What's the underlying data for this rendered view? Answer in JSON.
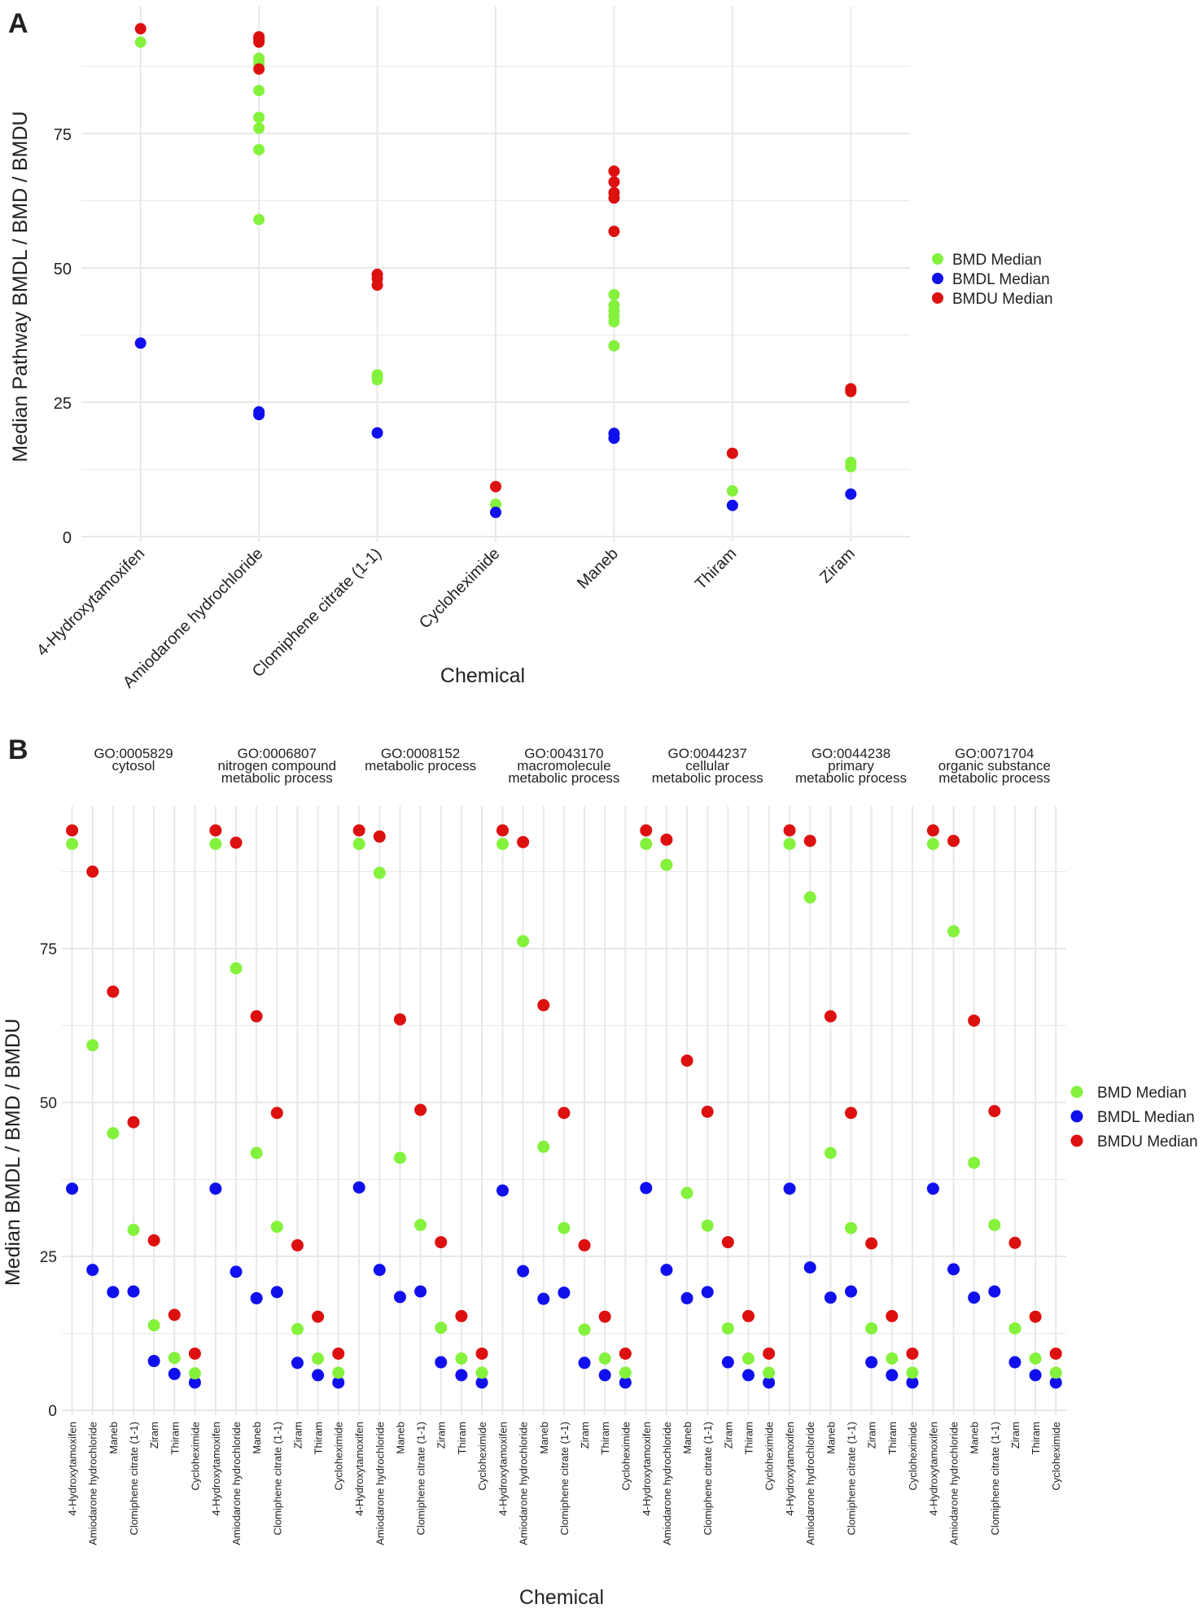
{
  "colors": {
    "bmd": "#84f23c",
    "bmdl": "#1010ee",
    "bmdu": "#dd1010",
    "grid": "#e8e8e8",
    "strip": "#ffffff"
  },
  "chart_data": [
    {
      "panel_label": "A",
      "type": "scatter",
      "xlabel": "Chemical",
      "ylabel": "Median Pathway BMDL / BMD / BMDU",
      "categories": [
        "4-Hydroxytamoxifen",
        "Amiodarone hydrochloride",
        "Clomiphene citrate (1-1)",
        "Cycloheximide",
        "Maneb",
        "Thiram",
        "Ziram"
      ],
      "yticks": [
        "0",
        "25",
        "50",
        "75"
      ],
      "ylim": [
        -1,
        96
      ],
      "grid": true,
      "legend": {
        "placement": "right",
        "entries": [
          "BMD Median",
          "BMDL Median",
          "BMDU Median"
        ]
      },
      "series": [
        {
          "name": "BMD Median",
          "points": [
            [
              0,
              92
            ],
            [
              1,
              89
            ],
            [
              1,
              88
            ],
            [
              1,
              83
            ],
            [
              1,
              78
            ],
            [
              1,
              76
            ],
            [
              1,
              72
            ],
            [
              1,
              59
            ],
            [
              2,
              30.1
            ],
            [
              2,
              29.5
            ],
            [
              2,
              29.2
            ],
            [
              3,
              6
            ],
            [
              4,
              45
            ],
            [
              4,
              43
            ],
            [
              4,
              42
            ],
            [
              4,
              41
            ],
            [
              4,
              40
            ],
            [
              4,
              35.5
            ],
            [
              5,
              8.5
            ],
            [
              6,
              13.8
            ],
            [
              6,
              13
            ]
          ]
        },
        {
          "name": "BMDL Median",
          "points": [
            [
              0,
              36
            ],
            [
              1,
              23.2
            ],
            [
              1,
              22.7
            ],
            [
              2,
              19.3
            ],
            [
              3,
              4.5
            ],
            [
              4,
              19.2
            ],
            [
              4,
              18.3
            ],
            [
              5,
              5.8
            ],
            [
              6,
              7.9
            ]
          ]
        },
        {
          "name": "BMDU Median",
          "points": [
            [
              0,
              94.5
            ],
            [
              1,
              93
            ],
            [
              1,
              92.5
            ],
            [
              1,
              92
            ],
            [
              1,
              87
            ],
            [
              2,
              48.8
            ],
            [
              2,
              48
            ],
            [
              2,
              46.8
            ],
            [
              3,
              9.3
            ],
            [
              4,
              68
            ],
            [
              4,
              66
            ],
            [
              4,
              64
            ],
            [
              4,
              63
            ],
            [
              4,
              56.8
            ],
            [
              5,
              15.5
            ],
            [
              6,
              27.5
            ],
            [
              6,
              27
            ]
          ]
        }
      ]
    },
    {
      "panel_label": "B",
      "type": "scatter",
      "xlabel": "Chemical",
      "ylabel": "Median BMDL / BMD / BMDU",
      "categories": [
        "4-Hydroxytamoxifen",
        "Amiodarone hydrochloride",
        "Maneb",
        "Clomiphene citrate (1-1)",
        "Ziram",
        "Thiram",
        "Cycloheximide"
      ],
      "yticks": [
        "0",
        "25",
        "50",
        "75"
      ],
      "ylim": [
        -1,
        96
      ],
      "grid": true,
      "legend": {
        "placement": "right",
        "entries": [
          "BMD Median",
          "BMDL Median",
          "BMDU Median"
        ]
      },
      "facets": [
        {
          "title": [
            "GO:0005829",
            "cytosol"
          ],
          "bmdl": [
            36,
            22.8,
            19.2,
            19.3,
            8,
            5.9,
            4.5
          ],
          "bmd": [
            92,
            59.3,
            45,
            29.3,
            13.8,
            8.5,
            6
          ],
          "bmdu": [
            94.2,
            87.5,
            68,
            46.8,
            27.6,
            15.5,
            9.2
          ]
        },
        {
          "title": [
            "GO:0006807",
            "nitrogen compound",
            "metabolic process"
          ],
          "bmdl": [
            36,
            22.5,
            18.2,
            19.2,
            7.7,
            5.7,
            4.5
          ],
          "bmd": [
            92,
            71.8,
            41.8,
            29.8,
            13.2,
            8.4,
            6.1
          ],
          "bmdu": [
            94.2,
            92.2,
            64,
            48.3,
            26.8,
            15.2,
            9.2
          ]
        },
        {
          "title": [
            "GO:0008152",
            "metabolic process"
          ],
          "bmdl": [
            36.2,
            22.8,
            18.4,
            19.3,
            7.8,
            5.7,
            4.5
          ],
          "bmd": [
            92,
            87.3,
            41,
            30.1,
            13.4,
            8.4,
            6.1
          ],
          "bmdu": [
            94.2,
            93.2,
            63.5,
            48.8,
            27.3,
            15.3,
            9.2
          ]
        },
        {
          "title": [
            "GO:0043170",
            "macromolecule",
            "metabolic process"
          ],
          "bmdl": [
            35.7,
            22.6,
            18.1,
            19.1,
            7.7,
            5.7,
            4.5
          ],
          "bmd": [
            92,
            76.2,
            42.8,
            29.6,
            13.1,
            8.4,
            6.1
          ],
          "bmdu": [
            94.2,
            92.3,
            65.8,
            48.3,
            26.8,
            15.2,
            9.2
          ]
        },
        {
          "title": [
            "GO:0044237",
            "cellular",
            "metabolic process"
          ],
          "bmdl": [
            36.1,
            22.8,
            18.2,
            19.2,
            7.8,
            5.7,
            4.5
          ],
          "bmd": [
            92,
            88.6,
            35.3,
            30,
            13.3,
            8.4,
            6.1
          ],
          "bmdu": [
            94.2,
            92.7,
            56.8,
            48.5,
            27.3,
            15.3,
            9.2
          ]
        },
        {
          "title": [
            "GO:0044238",
            "primary",
            "metabolic process"
          ],
          "bmdl": [
            36,
            23.2,
            18.3,
            19.3,
            7.8,
            5.7,
            4.5
          ],
          "bmd": [
            92,
            83.3,
            41.8,
            29.6,
            13.3,
            8.4,
            6.1
          ],
          "bmdu": [
            94.2,
            92.5,
            64,
            48.3,
            27.1,
            15.3,
            9.2
          ]
        },
        {
          "title": [
            "GO:0071704",
            "organic substance",
            "metabolic process"
          ],
          "bmdl": [
            36,
            22.9,
            18.3,
            19.3,
            7.8,
            5.7,
            4.5
          ],
          "bmd": [
            92,
            77.8,
            40.2,
            30.1,
            13.3,
            8.4,
            6.1
          ],
          "bmdu": [
            94.2,
            92.5,
            63.3,
            48.6,
            27.2,
            15.2,
            9.2
          ]
        }
      ]
    }
  ]
}
